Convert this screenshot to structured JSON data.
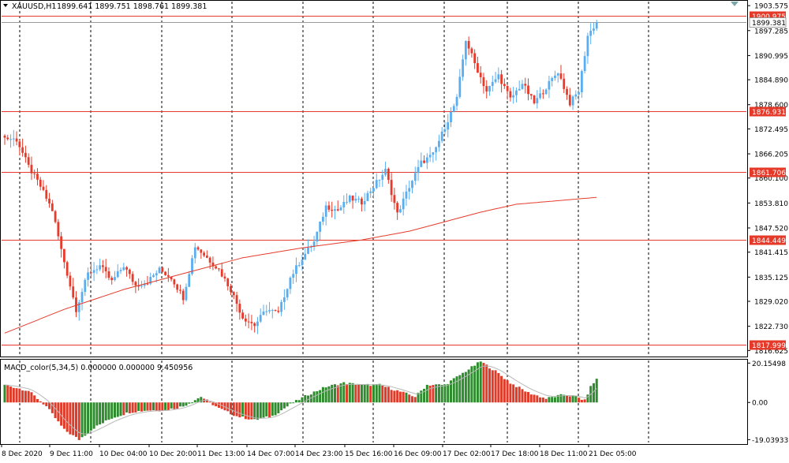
{
  "header": {
    "symbol_label": "XAUUSD,H1",
    "ohlc_label": "1899.641 1899.751 1898.761 1899.381"
  },
  "indicator": {
    "label": "MACD_color(5,34,5) 0.000000 0.000000 9.450956"
  },
  "colors": {
    "bull": "#5aaef0",
    "bear": "#e83a2a",
    "ma_line": "#e63c2c",
    "hline": "#e53a2a",
    "macd_pos": "#2e8b2e",
    "macd_neg": "#e03a28",
    "signal": "#b8b8b8",
    "grid": "#000000",
    "axis_text": "#000000"
  },
  "chart_data": [
    {
      "type": "candlestick",
      "title": "XAUUSD,H1",
      "x_axis_labels": [
        "8 Dec 2020",
        "9 Dec 11:00",
        "10 Dec 04:00",
        "10 Dec 20:00",
        "11 Dec 13:00",
        "14 Dec 07:00",
        "14 Dec 23:00",
        "15 Dec 16:00",
        "16 Dec 09:00",
        "17 Dec 02:00",
        "17 Dec 18:00",
        "18 Dec 11:00",
        "21 Dec 05:00"
      ],
      "y_ticks": [
        "1903.575",
        "1897.285",
        "1890.995",
        "1884.890",
        "1878.600",
        "1872.495",
        "1866.205",
        "1860.100",
        "1853.810",
        "1847.520",
        "1841.415",
        "1835.125",
        "1829.020",
        "1822.730",
        "1816.625"
      ],
      "ylim": [
        1815.5,
        1904.6
      ],
      "grid": "vertical dashed",
      "horizontal_levels": [
        {
          "label": "1900.975",
          "value": 1900.975
        },
        {
          "label": "1876.931",
          "value": 1876.931
        },
        {
          "label": "1861.706",
          "value": 1861.706
        },
        {
          "label": "1844.449",
          "value": 1844.449
        },
        {
          "label": "1817.999",
          "value": 1817.999
        }
      ],
      "current_price": {
        "label": "1899.381",
        "value": 1899.381
      },
      "keypoints": [
        [
          0,
          1870.2
        ],
        [
          4,
          1869.8
        ],
        [
          8,
          1863
        ],
        [
          12,
          1858
        ],
        [
          16,
          1852
        ],
        [
          19,
          1842
        ],
        [
          24,
          1827
        ],
        [
          28,
          1836
        ],
        [
          32,
          1838
        ],
        [
          36,
          1834
        ],
        [
          40,
          1838
        ],
        [
          44,
          1833
        ],
        [
          48,
          1834
        ],
        [
          52,
          1837
        ],
        [
          56,
          1835
        ],
        [
          60,
          1830
        ],
        [
          64,
          1843
        ],
        [
          68,
          1840
        ],
        [
          72,
          1837
        ],
        [
          76,
          1832
        ],
        [
          80,
          1825
        ],
        [
          84,
          1823
        ],
        [
          88,
          1827
        ],
        [
          92,
          1826
        ],
        [
          96,
          1835
        ],
        [
          100,
          1840
        ],
        [
          104,
          1844
        ],
        [
          108,
          1853
        ],
        [
          112,
          1852
        ],
        [
          116,
          1855
        ],
        [
          120,
          1854
        ],
        [
          124,
          1858
        ],
        [
          128,
          1862
        ],
        [
          132,
          1851
        ],
        [
          136,
          1858
        ],
        [
          140,
          1864
        ],
        [
          144,
          1866
        ],
        [
          148,
          1873
        ],
        [
          152,
          1880
        ],
        [
          155,
          1895
        ],
        [
          158,
          1889
        ],
        [
          162,
          1882
        ],
        [
          166,
          1886
        ],
        [
          170,
          1880
        ],
        [
          174,
          1884
        ],
        [
          178,
          1879
        ],
        [
          182,
          1883
        ],
        [
          186,
          1887
        ],
        [
          190,
          1879
        ],
        [
          193,
          1882
        ],
        [
          196,
          1896
        ],
        [
          199,
          1899.4
        ]
      ],
      "moving_average": [
        [
          0,
          1821
        ],
        [
          20,
          1827
        ],
        [
          40,
          1832
        ],
        [
          60,
          1836
        ],
        [
          80,
          1840
        ],
        [
          100,
          1842.5
        ],
        [
          120,
          1844.5
        ],
        [
          136,
          1846.7
        ],
        [
          150,
          1849.5
        ],
        [
          160,
          1851.5
        ],
        [
          172,
          1853.5
        ],
        [
          200,
          1855.3
        ]
      ]
    },
    {
      "type": "histogram",
      "title": "MACD_color(5,34,5)",
      "y_ticks": [
        "20.15498",
        "0.00",
        "-19.03933"
      ],
      "ylim": [
        -20.5,
        21.5
      ],
      "keypoints": [
        [
          0,
          9
        ],
        [
          8,
          6
        ],
        [
          14,
          -2
        ],
        [
          20,
          -14
        ],
        [
          25,
          -19
        ],
        [
          30,
          -13
        ],
        [
          36,
          -8
        ],
        [
          42,
          -5
        ],
        [
          48,
          -4
        ],
        [
          54,
          -4
        ],
        [
          60,
          -2
        ],
        [
          66,
          3
        ],
        [
          72,
          -3
        ],
        [
          78,
          -7
        ],
        [
          84,
          -9
        ],
        [
          90,
          -7
        ],
        [
          96,
          -1
        ],
        [
          102,
          4
        ],
        [
          108,
          8
        ],
        [
          114,
          10
        ],
        [
          120,
          9
        ],
        [
          126,
          9
        ],
        [
          132,
          6
        ],
        [
          138,
          3
        ],
        [
          142,
          9
        ],
        [
          148,
          9
        ],
        [
          152,
          13
        ],
        [
          157,
          18
        ],
        [
          160,
          21
        ],
        [
          165,
          16
        ],
        [
          170,
          10
        ],
        [
          176,
          5
        ],
        [
          182,
          2
        ],
        [
          188,
          4
        ],
        [
          192,
          3
        ],
        [
          195,
          1
        ],
        [
          197,
          8
        ],
        [
          200,
          14
        ]
      ]
    }
  ]
}
